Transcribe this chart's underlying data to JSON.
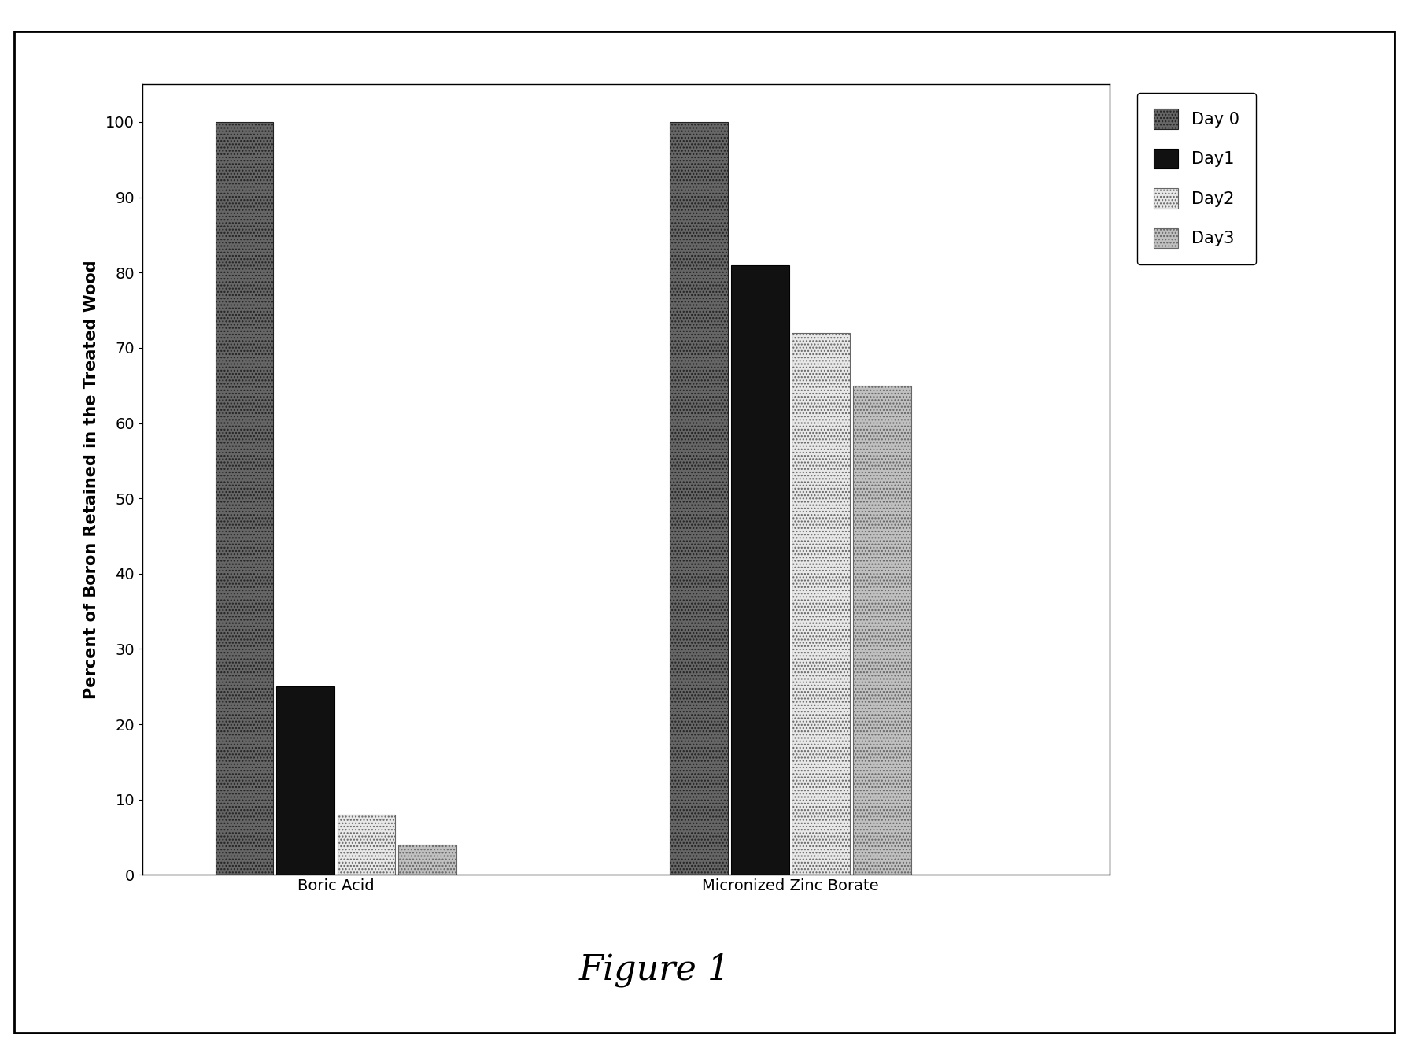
{
  "categories": [
    "Boric Acid",
    "Micronized Zinc Borate"
  ],
  "series": {
    "Day 0": [
      100,
      100
    ],
    "Day1": [
      25,
      81
    ],
    "Day2": [
      8,
      72
    ],
    "Day3": [
      4,
      65
    ]
  },
  "ylabel": "Percent of Boron Retained in the Treated Wood",
  "ylim": [
    0,
    105
  ],
  "yticks": [
    0,
    10,
    20,
    30,
    40,
    50,
    60,
    70,
    80,
    90,
    100
  ],
  "title": "Figure 1",
  "title_fontsize": 32,
  "axis_label_fontsize": 15,
  "tick_fontsize": 14,
  "legend_fontsize": 15,
  "bar_width": 0.06,
  "background_color": "#ffffff",
  "plot_bg_color": "#ffffff",
  "group_centers": [
    0.25,
    0.72
  ],
  "xlim": [
    0.05,
    1.05
  ]
}
